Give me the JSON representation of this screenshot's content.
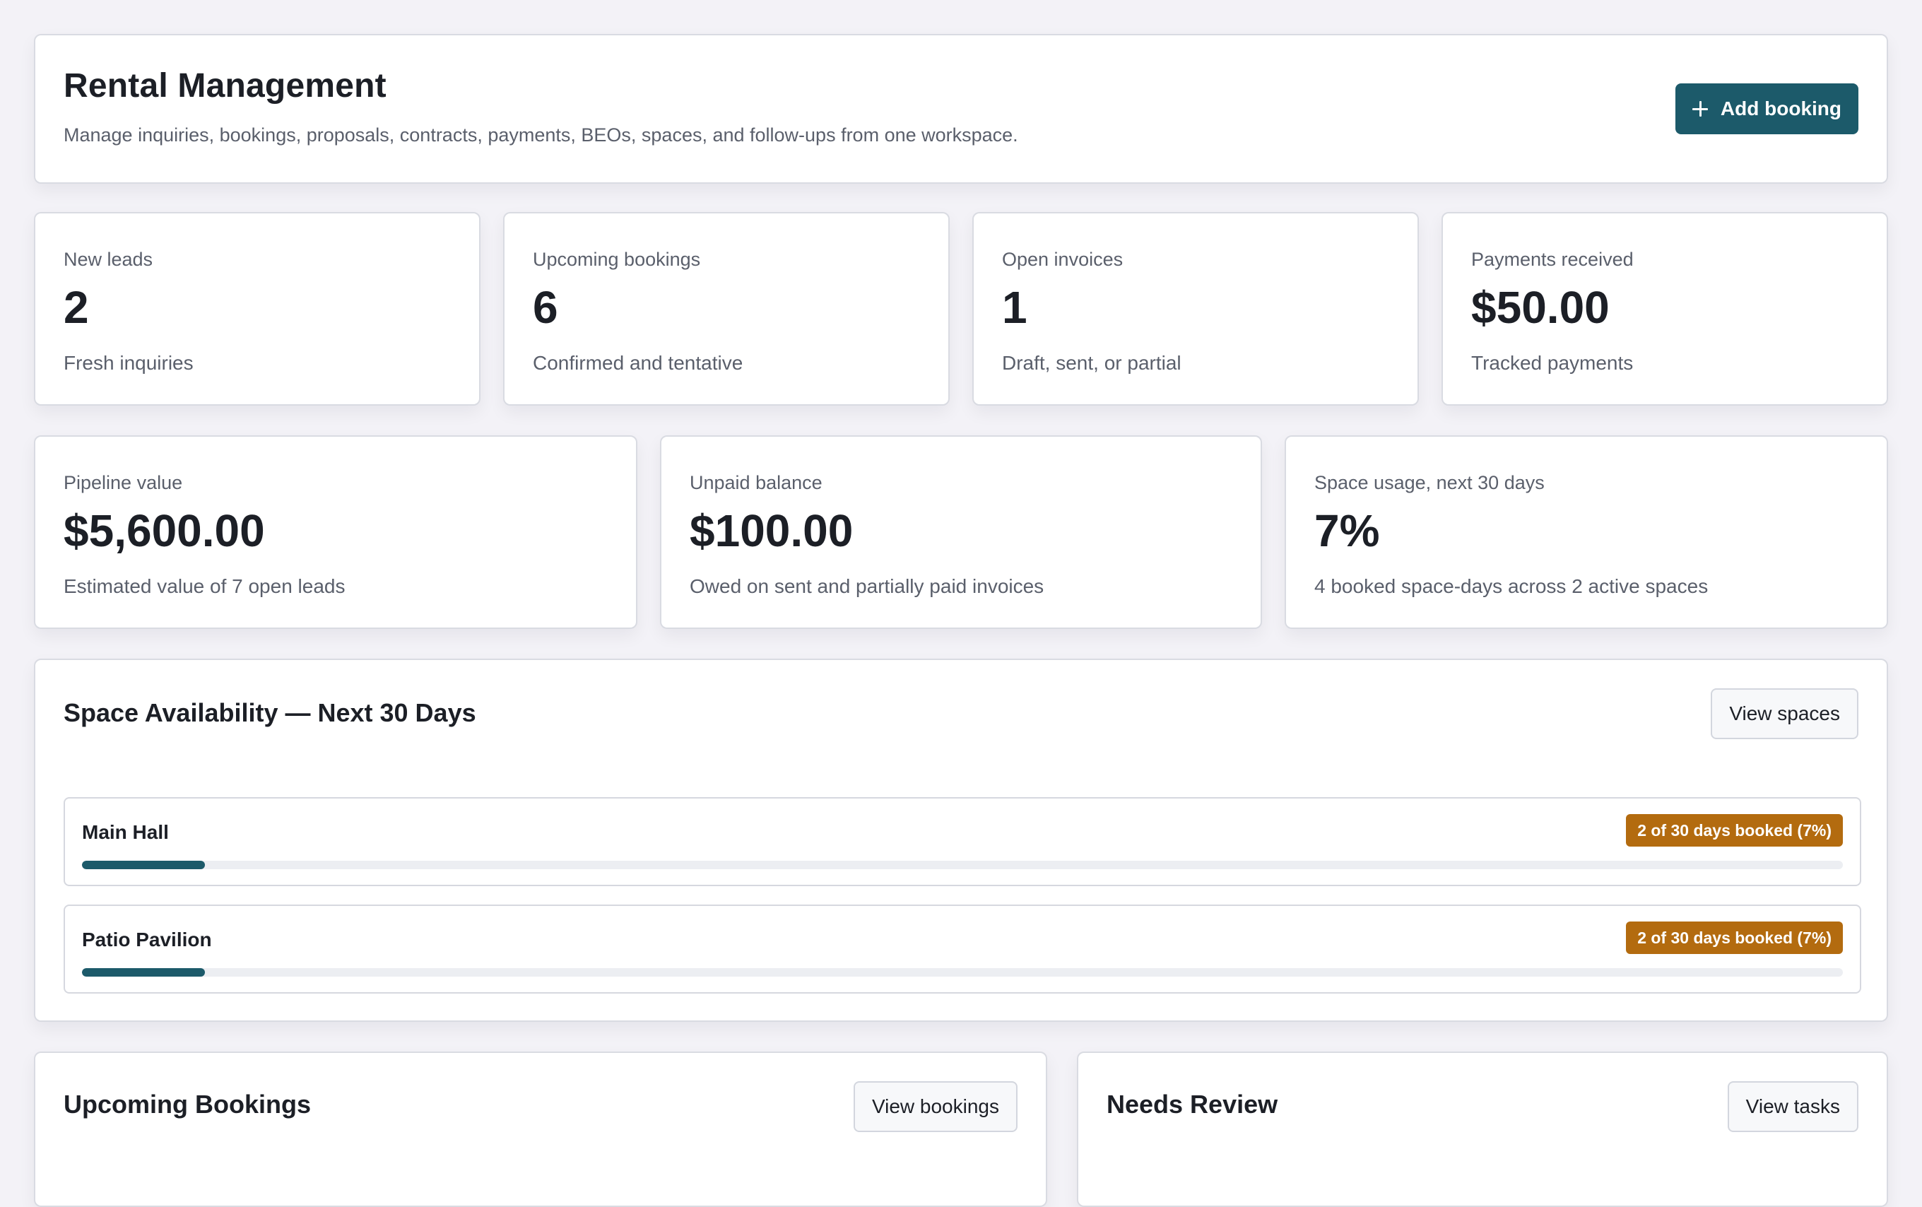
{
  "header": {
    "title": "Rental Management",
    "subtitle": "Manage inquiries, bookings, proposals, contracts, payments, BEOs, spaces, and follow-ups from one workspace.",
    "add_button": "Add booking"
  },
  "stats_row1": [
    {
      "label": "New leads",
      "value": "2",
      "caption": "Fresh inquiries"
    },
    {
      "label": "Upcoming bookings",
      "value": "6",
      "caption": "Confirmed and tentative"
    },
    {
      "label": "Open invoices",
      "value": "1",
      "caption": "Draft, sent, or partial"
    },
    {
      "label": "Payments received",
      "value": "$50.00",
      "caption": "Tracked payments"
    }
  ],
  "stats_row2": [
    {
      "label": "Pipeline value",
      "value": "$5,600.00",
      "caption": "Estimated value of 7 open leads"
    },
    {
      "label": "Unpaid balance",
      "value": "$100.00",
      "caption": "Owed on sent and partially paid invoices"
    },
    {
      "label": "Space usage, next 30 days",
      "value": "7%",
      "caption": "4 booked space-days across 2 active spaces"
    }
  ],
  "availability": {
    "title": "Space Availability — Next 30 Days",
    "button": "View spaces",
    "spaces": [
      {
        "name": "Main Hall",
        "badge": "2 of 30 days booked (7%)",
        "percent": 7
      },
      {
        "name": "Patio Pavilion",
        "badge": "2 of 30 days booked (7%)",
        "percent": 7
      }
    ]
  },
  "upcoming": {
    "title": "Upcoming Bookings",
    "button": "View bookings"
  },
  "review": {
    "title": "Needs Review",
    "button": "View tasks"
  },
  "colors": {
    "accent": "#1c5a6a",
    "badge": "#b36b0f",
    "background": "#f3f2f7"
  }
}
